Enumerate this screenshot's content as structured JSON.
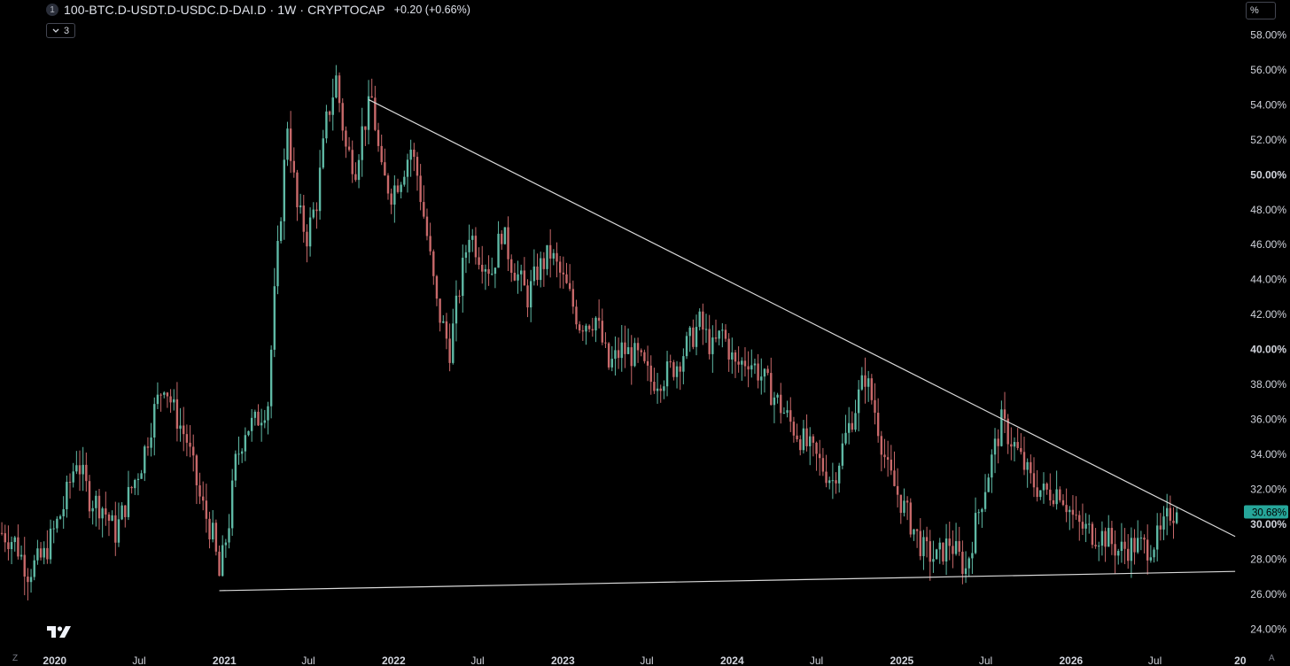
{
  "header": {
    "series_index": "1",
    "title": "100-BTC.D-USDT.D-USDC.D-DAI.D · 1W · CRYPTOCAP",
    "change": "+0.20 (+0.66%)",
    "collapse_count": "3"
  },
  "controls": {
    "scale_mode_label": "%",
    "left_corner": "Z",
    "right_corner": "A"
  },
  "chart_data": {
    "type": "candlestick",
    "title": "100-BTC.D-USDT.D-USDC.D-DAI.D",
    "interval": "1W",
    "source": "CRYPTOCAP",
    "y_unit": "%",
    "ylim": [
      22.8,
      60.0
    ],
    "y_ticks": [
      24,
      26,
      28,
      30,
      32,
      34,
      36,
      38,
      40,
      42,
      44,
      46,
      48,
      50,
      52,
      54,
      56,
      58
    ],
    "y_tick_labels": [
      "24.00%",
      "26.00%",
      "28.00%",
      "30.00%",
      "32.00%",
      "34.00%",
      "36.00%",
      "38.00%",
      "40.00%",
      "42.00%",
      "44.00%",
      "46.00%",
      "48.00%",
      "50.00%",
      "52.00%",
      "54.00%",
      "56.00%",
      "58.00%"
    ],
    "y_bold_ticks": [
      30,
      40,
      50
    ],
    "xlim": [
      "2019-09-05",
      "2027-01-07"
    ],
    "x_ticks": [
      {
        "date": "2020-01-01",
        "label": "2020",
        "bold": true
      },
      {
        "date": "2020-07-01",
        "label": "Jul",
        "bold": false
      },
      {
        "date": "2021-01-01",
        "label": "2021",
        "bold": true
      },
      {
        "date": "2021-07-01",
        "label": "Jul",
        "bold": false
      },
      {
        "date": "2022-01-01",
        "label": "2022",
        "bold": true
      },
      {
        "date": "2022-07-01",
        "label": "Jul",
        "bold": false
      },
      {
        "date": "2023-01-01",
        "label": "2023",
        "bold": true
      },
      {
        "date": "2023-07-01",
        "label": "Jul",
        "bold": false
      },
      {
        "date": "2024-01-01",
        "label": "2024",
        "bold": true
      },
      {
        "date": "2024-07-01",
        "label": "Jul",
        "bold": false
      },
      {
        "date": "2025-01-01",
        "label": "2025",
        "bold": true
      },
      {
        "date": "2025-07-01",
        "label": "Jul",
        "bold": false
      },
      {
        "date": "2026-01-01",
        "label": "2026",
        "bold": true
      },
      {
        "date": "2026-07-01",
        "label": "Jul",
        "bold": false
      },
      {
        "date": "2027-01-01",
        "label": "20",
        "bold": true
      }
    ],
    "last_price": 30.68,
    "last_price_label": "30.68%",
    "colors": {
      "up": "#26a69a",
      "down": "#ef5350",
      "up_dim": "#5fb9a5",
      "down_dim": "#c8696a",
      "trendline": "#d9d9d9",
      "axis_text": "#d1d4dc",
      "background": "#000000"
    },
    "trendlines": [
      {
        "name": "descending-resistance",
        "from": {
          "date": "2021-11-08",
          "value": 54.3
        },
        "to": {
          "date": "2026-12-21",
          "value": 29.3
        }
      },
      {
        "name": "ascending-support",
        "from": {
          "date": "2020-12-21",
          "value": 26.2
        },
        "to": {
          "date": "2026-12-21",
          "value": 27.3
        }
      }
    ],
    "anchors": [
      [
        "2019-09-09",
        29.5
      ],
      [
        "2019-10-07",
        29.0
      ],
      [
        "2019-11-04",
        27.3
      ],
      [
        "2019-12-09",
        28.2
      ],
      [
        "2020-01-20",
        31.0
      ],
      [
        "2020-02-17",
        33.8
      ],
      [
        "2020-03-16",
        31.5
      ],
      [
        "2020-04-13",
        31.0
      ],
      [
        "2020-05-11",
        29.5
      ],
      [
        "2020-06-08",
        31.6
      ],
      [
        "2020-07-06",
        33.5
      ],
      [
        "2020-08-03",
        36.5
      ],
      [
        "2020-08-24",
        38.2
      ],
      [
        "2020-09-14",
        36.5
      ],
      [
        "2020-10-12",
        34.8
      ],
      [
        "2020-11-09",
        31.5
      ],
      [
        "2020-12-07",
        29.3
      ],
      [
        "2020-12-21",
        27.0
      ],
      [
        "2021-01-11",
        30.2
      ],
      [
        "2021-01-25",
        33.5
      ],
      [
        "2021-02-15",
        35.5
      ],
      [
        "2021-03-08",
        35.8
      ],
      [
        "2021-04-05",
        37.0
      ],
      [
        "2021-04-19",
        43.0
      ],
      [
        "2021-05-03",
        48.0
      ],
      [
        "2021-05-17",
        53.0
      ],
      [
        "2021-06-07",
        48.0
      ],
      [
        "2021-06-28",
        46.5
      ],
      [
        "2021-07-19",
        48.5
      ],
      [
        "2021-08-09",
        53.0
      ],
      [
        "2021-08-30",
        55.5
      ],
      [
        "2021-09-20",
        51.5
      ],
      [
        "2021-10-11",
        50.5
      ],
      [
        "2021-10-25",
        52.5
      ],
      [
        "2021-11-15",
        54.3
      ],
      [
        "2021-12-06",
        50.0
      ],
      [
        "2021-12-27",
        49.0
      ],
      [
        "2022-01-17",
        50.0
      ],
      [
        "2022-02-07",
        51.5
      ],
      [
        "2022-02-21",
        50.0
      ],
      [
        "2022-03-14",
        46.5
      ],
      [
        "2022-04-04",
        42.5
      ],
      [
        "2022-05-02",
        40.0
      ],
      [
        "2022-05-23",
        43.5
      ],
      [
        "2022-06-13",
        46.8
      ],
      [
        "2022-07-04",
        45.5
      ],
      [
        "2022-08-01",
        44.5
      ],
      [
        "2022-08-22",
        46.8
      ],
      [
        "2022-09-12",
        45.0
      ],
      [
        "2022-10-17",
        43.0
      ],
      [
        "2022-11-07",
        44.5
      ],
      [
        "2022-12-05",
        45.5
      ],
      [
        "2023-01-09",
        43.5
      ],
      [
        "2023-02-06",
        41.5
      ],
      [
        "2023-03-13",
        41.8
      ],
      [
        "2023-04-10",
        39.0
      ],
      [
        "2023-05-08",
        40.0
      ],
      [
        "2023-06-12",
        39.5
      ],
      [
        "2023-07-10",
        38.2
      ],
      [
        "2023-08-07",
        38.5
      ],
      [
        "2023-09-04",
        39.2
      ],
      [
        "2023-10-02",
        40.5
      ],
      [
        "2023-10-23",
        41.5
      ],
      [
        "2023-11-20",
        40.0
      ],
      [
        "2023-12-11",
        41.0
      ],
      [
        "2024-01-08",
        39.0
      ],
      [
        "2024-02-05",
        39.5
      ],
      [
        "2024-03-04",
        38.5
      ],
      [
        "2024-04-08",
        37.0
      ],
      [
        "2024-05-13",
        35.5
      ],
      [
        "2024-06-10",
        34.5
      ],
      [
        "2024-07-08",
        33.5
      ],
      [
        "2024-08-05",
        32.5
      ],
      [
        "2024-09-02",
        35.0
      ],
      [
        "2024-10-14",
        38.5
      ],
      [
        "2024-11-04",
        36.5
      ],
      [
        "2024-12-02",
        33.0
      ],
      [
        "2025-01-13",
        30.5
      ],
      [
        "2025-02-17",
        28.5
      ],
      [
        "2025-03-17",
        28.0
      ],
      [
        "2025-04-14",
        29.0
      ],
      [
        "2025-05-19",
        27.4
      ],
      [
        "2025-06-09",
        30.0
      ],
      [
        "2025-07-07",
        33.0
      ],
      [
        "2025-08-04",
        35.8
      ],
      [
        "2025-09-01",
        34.5
      ],
      [
        "2025-10-06",
        32.5
      ],
      [
        "2025-11-03",
        31.8
      ],
      [
        "2025-12-08",
        32.0
      ],
      [
        "2026-01-12",
        30.0
      ],
      [
        "2026-02-16",
        29.5
      ],
      [
        "2026-03-16",
        29.3
      ],
      [
        "2026-04-13",
        28.5
      ],
      [
        "2026-05-18",
        28.8
      ],
      [
        "2026-06-15",
        28.7
      ],
      [
        "2026-07-13",
        29.3
      ],
      [
        "2026-08-03",
        30.7
      ],
      [
        "2026-08-17",
        30.68
      ]
    ]
  }
}
